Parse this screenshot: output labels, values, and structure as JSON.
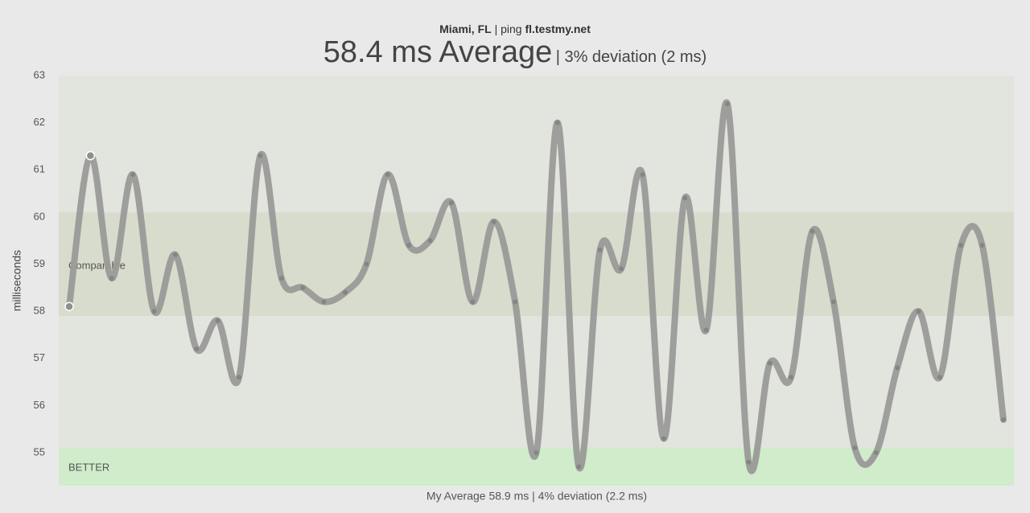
{
  "chart_data": {
    "type": "line",
    "title_location": "Miami, FL",
    "title_sep": "| ping",
    "title_host": "fl.testmy.net",
    "subtitle_main": "58.4 ms Average",
    "subtitle_detail": "| 3% deviation (2 ms)",
    "footer": "My Average 58.9 ms | 4% deviation (2.2 ms)",
    "y_label": "milliseconds",
    "categories": [
      null,
      null,
      null,
      null,
      null,
      null,
      null,
      null,
      null,
      null,
      null,
      null,
      null,
      null,
      null,
      null,
      null,
      null,
      null,
      null,
      null,
      null,
      null,
      null,
      null,
      null,
      null,
      null,
      null,
      null,
      null,
      null,
      null,
      null,
      null,
      null,
      null,
      null,
      null,
      null,
      null,
      null,
      null,
      null,
      null
    ],
    "series": [
      {
        "name": "ping",
        "color": "#9a9a98",
        "values": [
          58.1,
          61.3,
          58.7,
          60.9,
          58.0,
          59.2,
          57.2,
          57.8,
          56.6,
          61.3,
          58.7,
          58.5,
          58.2,
          58.4,
          59.0,
          60.9,
          59.4,
          59.5,
          60.3,
          58.2,
          59.9,
          58.2,
          55.0,
          62.0,
          54.7,
          59.3,
          58.9,
          60.9,
          55.3,
          60.4,
          57.6,
          62.4,
          54.8,
          56.9,
          56.6,
          59.7,
          58.2,
          55.1,
          55.0,
          56.8,
          58.0,
          56.6,
          59.4,
          59.4,
          55.7
        ]
      }
    ],
    "bands": [
      {
        "label": "Comparable",
        "from": 57.9,
        "to": 60.1,
        "color": "#d8dccd"
      },
      {
        "label": "BETTER",
        "from": 54.3,
        "to": 55.1,
        "color": "#d0eccb"
      }
    ],
    "ylim": [
      54.3,
      63
    ],
    "yticks": [
      55,
      56,
      57,
      58,
      59,
      60,
      61,
      62,
      63
    ],
    "plot_color": "#e2e4de"
  }
}
